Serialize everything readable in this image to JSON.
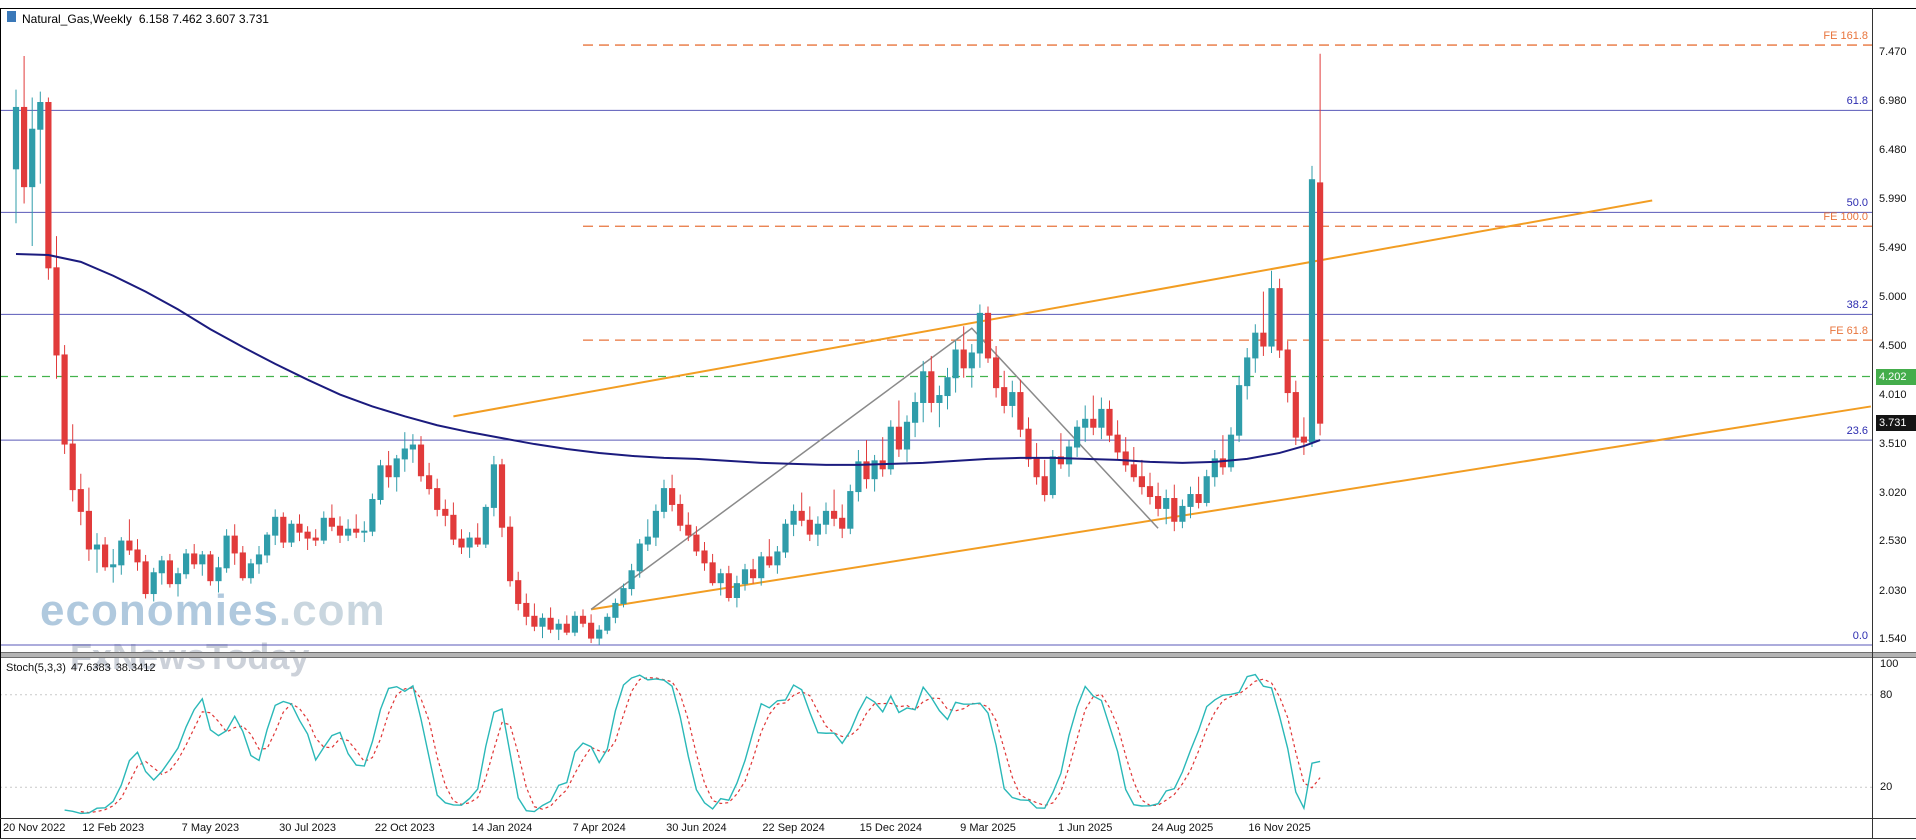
{
  "window": {
    "title_symbol": "Natural_Gas,Weekly",
    "title_ohlc": "6.158 7.462 3.607 3.731"
  },
  "watermark": {
    "brand": "economies",
    "brand_suffix": ".com",
    "subbrand": "FxNewsToday"
  },
  "indicator": {
    "label": "Stoch(5,3,3)",
    "value_k": "47.6383",
    "value_d": "38.3412",
    "scale": [
      {
        "label": "100",
        "value": 100
      },
      {
        "label": "80",
        "value": 80
      },
      {
        "label": "20",
        "value": 20
      }
    ]
  },
  "axes": {
    "price_ticks": [
      {
        "label": "7.470",
        "value": 7.47
      },
      {
        "label": "6.980",
        "value": 6.98
      },
      {
        "label": "6.480",
        "value": 6.48
      },
      {
        "label": "5.990",
        "value": 5.99
      },
      {
        "label": "5.490",
        "value": 5.49
      },
      {
        "label": "5.000",
        "value": 5.0
      },
      {
        "label": "4.500",
        "value": 4.5
      },
      {
        "label": "4.010",
        "value": 4.01
      },
      {
        "label": "3.510",
        "value": 3.51
      },
      {
        "label": "3.020",
        "value": 3.02
      },
      {
        "label": "2.530",
        "value": 2.53
      },
      {
        "label": "2.030",
        "value": 2.03
      },
      {
        "label": "1.540",
        "value": 1.54
      }
    ],
    "x_ticks": [
      {
        "week": 0,
        "label": "20 Nov 2022"
      },
      {
        "week": 12,
        "label": "12 Feb 2023"
      },
      {
        "week": 24,
        "label": "7 May 2023"
      },
      {
        "week": 36,
        "label": "30 Jul 2023"
      },
      {
        "week": 48,
        "label": "22 Oct 2023"
      },
      {
        "week": 60,
        "label": "14 Jan 2024"
      },
      {
        "week": 72,
        "label": "7 Apr 2024"
      },
      {
        "week": 84,
        "label": "30 Jun 2024"
      },
      {
        "week": 96,
        "label": "22 Sep 2024"
      },
      {
        "week": 108,
        "label": "15 Dec 2024"
      },
      {
        "week": 120,
        "label": "9 Mar 2025"
      },
      {
        "week": 132,
        "label": "1 Jun 2025"
      },
      {
        "week": 144,
        "label": "24 Aug 2025"
      },
      {
        "week": 156,
        "label": "16 Nov 2025"
      }
    ]
  },
  "colors": {
    "up": "#2f9daa",
    "down": "#e13b3b",
    "ma": "#1b1b7e",
    "fib_line": "#5a5ab8",
    "fib_label": "#2c2cb0",
    "fe": "#e8743c",
    "green_line": "#43b34d",
    "badge_green": "#44ad4b",
    "badge_dark": "#141414",
    "channel": "#f29d22",
    "pattern": "#8a8a8a",
    "stoch_k": "#2ab8b8",
    "stoch_d": "#e03636",
    "divider": "#b4b4b4",
    "divider_edge": "#6e6e6e"
  },
  "chart_data": {
    "type": "candlestick",
    "title": "Natural_Gas,Weekly",
    "symbol": "Natural_Gas",
    "timeframe": "Weekly",
    "current_bar_ohlc": [
      6.158,
      7.462,
      3.607,
      3.731
    ],
    "y_range": [
      1.42,
      7.92
    ],
    "weeks_per_tick": 12,
    "levels": {
      "fibo": [
        {
          "label": "61.8",
          "value": 6.89
        },
        {
          "label": "50.0",
          "value": 5.86
        },
        {
          "label": "38.2",
          "value": 4.83
        },
        {
          "label": "23.6",
          "value": 3.56
        },
        {
          "label": "0.0",
          "value": 1.49
        }
      ],
      "fe_start_week": 70,
      "fe": [
        {
          "label": "FE 161.8",
          "value": 7.55
        },
        {
          "label": "FE 100.0",
          "value": 5.72
        },
        {
          "label": "FE 61.8",
          "value": 4.57
        }
      ],
      "green": {
        "label": "4.202",
        "value": 4.202
      },
      "current": {
        "label": "3.731",
        "value": 3.731
      }
    },
    "trendlines": [
      {
        "name": "upper-channel",
        "from": [
          54,
          3.8
        ],
        "to": [
          202,
          5.98
        ]
      },
      {
        "name": "lower-channel",
        "from": [
          71,
          1.85
        ],
        "to": [
          229,
          3.9
        ]
      }
    ],
    "pattern": {
      "name": "zigzag-triangle",
      "points": [
        [
          71,
          1.85
        ],
        [
          118,
          4.69
        ],
        [
          141,
          2.67
        ]
      ]
    },
    "ma_points": [
      [
        0,
        5.44
      ],
      [
        4,
        5.43
      ],
      [
        8,
        5.36
      ],
      [
        12,
        5.22
      ],
      [
        16,
        5.06
      ],
      [
        20,
        4.88
      ],
      [
        24,
        4.68
      ],
      [
        28,
        4.5
      ],
      [
        32,
        4.33
      ],
      [
        36,
        4.17
      ],
      [
        40,
        4.02
      ],
      [
        44,
        3.9
      ],
      [
        48,
        3.8
      ],
      [
        52,
        3.71
      ],
      [
        56,
        3.64
      ],
      [
        60,
        3.58
      ],
      [
        64,
        3.52
      ],
      [
        68,
        3.47
      ],
      [
        72,
        3.43
      ],
      [
        76,
        3.4
      ],
      [
        80,
        3.38
      ],
      [
        84,
        3.37
      ],
      [
        88,
        3.35
      ],
      [
        92,
        3.33
      ],
      [
        96,
        3.32
      ],
      [
        100,
        3.31
      ],
      [
        104,
        3.31
      ],
      [
        108,
        3.32
      ],
      [
        112,
        3.33
      ],
      [
        116,
        3.35
      ],
      [
        120,
        3.37
      ],
      [
        124,
        3.38
      ],
      [
        128,
        3.38
      ],
      [
        132,
        3.37
      ],
      [
        136,
        3.36
      ],
      [
        140,
        3.34
      ],
      [
        144,
        3.33
      ],
      [
        148,
        3.34
      ],
      [
        152,
        3.37
      ],
      [
        156,
        3.43
      ],
      [
        159,
        3.5
      ],
      [
        161,
        3.56
      ]
    ],
    "stoch_settings": {
      "k": 5,
      "slowing": 3,
      "d": 3
    },
    "candles_ohlc": [
      [
        6.3,
        7.1,
        5.75,
        6.92
      ],
      [
        6.92,
        7.44,
        5.95,
        6.12
      ],
      [
        6.12,
        7.02,
        5.52,
        6.7
      ],
      [
        6.7,
        7.08,
        6.15,
        6.97
      ],
      [
        6.97,
        7.02,
        5.18,
        5.3
      ],
      [
        5.3,
        5.62,
        4.18,
        4.42
      ],
      [
        4.42,
        4.52,
        3.42,
        3.52
      ],
      [
        3.52,
        3.72,
        2.94,
        3.06
      ],
      [
        3.06,
        3.22,
        2.7,
        2.84
      ],
      [
        2.84,
        3.08,
        2.34,
        2.46
      ],
      [
        2.46,
        2.62,
        2.22,
        2.5
      ],
      [
        2.5,
        2.58,
        2.24,
        2.28
      ],
      [
        2.28,
        2.46,
        2.12,
        2.3
      ],
      [
        2.3,
        2.58,
        2.2,
        2.54
      ],
      [
        2.54,
        2.76,
        2.4,
        2.45
      ],
      [
        2.45,
        2.56,
        2.24,
        2.33
      ],
      [
        2.33,
        2.4,
        1.96,
        2.01
      ],
      [
        2.01,
        2.27,
        1.93,
        2.22
      ],
      [
        2.22,
        2.39,
        2.1,
        2.34
      ],
      [
        2.34,
        2.41,
        2.07,
        2.11
      ],
      [
        2.11,
        2.27,
        1.98,
        2.21
      ],
      [
        2.21,
        2.46,
        2.16,
        2.41
      ],
      [
        2.41,
        2.51,
        2.26,
        2.31
      ],
      [
        2.31,
        2.44,
        2.19,
        2.4
      ],
      [
        2.4,
        2.44,
        2.09,
        2.14
      ],
      [
        2.14,
        2.38,
        2.02,
        2.27
      ],
      [
        2.27,
        2.66,
        2.22,
        2.59
      ],
      [
        2.59,
        2.71,
        2.3,
        2.42
      ],
      [
        2.42,
        2.49,
        2.14,
        2.17
      ],
      [
        2.17,
        2.36,
        2.11,
        2.31
      ],
      [
        2.31,
        2.49,
        2.21,
        2.4
      ],
      [
        2.4,
        2.63,
        2.32,
        2.6
      ],
      [
        2.6,
        2.86,
        2.5,
        2.78
      ],
      [
        2.78,
        2.83,
        2.47,
        2.53
      ],
      [
        2.53,
        2.75,
        2.48,
        2.71
      ],
      [
        2.71,
        2.81,
        2.54,
        2.63
      ],
      [
        2.63,
        2.69,
        2.45,
        2.57
      ],
      [
        2.57,
        2.66,
        2.49,
        2.55
      ],
      [
        2.55,
        2.84,
        2.51,
        2.77
      ],
      [
        2.77,
        2.91,
        2.64,
        2.69
      ],
      [
        2.69,
        2.79,
        2.52,
        2.6
      ],
      [
        2.6,
        2.76,
        2.54,
        2.66
      ],
      [
        2.66,
        2.81,
        2.57,
        2.63
      ],
      [
        2.63,
        2.74,
        2.53,
        2.64
      ],
      [
        2.64,
        3.02,
        2.59,
        2.96
      ],
      [
        2.96,
        3.36,
        2.91,
        3.3
      ],
      [
        3.3,
        3.45,
        3.08,
        3.19
      ],
      [
        3.19,
        3.41,
        3.04,
        3.37
      ],
      [
        3.37,
        3.64,
        3.24,
        3.47
      ],
      [
        3.47,
        3.62,
        3.33,
        3.51
      ],
      [
        3.51,
        3.6,
        3.14,
        3.2
      ],
      [
        3.2,
        3.33,
        3.01,
        3.07
      ],
      [
        3.07,
        3.17,
        2.79,
        2.86
      ],
      [
        2.86,
        2.96,
        2.69,
        2.8
      ],
      [
        2.8,
        2.93,
        2.5,
        2.56
      ],
      [
        2.56,
        2.66,
        2.41,
        2.48
      ],
      [
        2.48,
        2.63,
        2.37,
        2.57
      ],
      [
        2.57,
        2.72,
        2.48,
        2.51
      ],
      [
        2.51,
        2.91,
        2.47,
        2.88
      ],
      [
        2.88,
        3.4,
        2.79,
        3.31
      ],
      [
        3.31,
        3.37,
        2.58,
        2.68
      ],
      [
        2.68,
        2.79,
        2.08,
        2.14
      ],
      [
        2.14,
        2.23,
        1.84,
        1.91
      ],
      [
        1.91,
        2.01,
        1.69,
        1.78
      ],
      [
        1.78,
        1.91,
        1.63,
        1.68
      ],
      [
        1.68,
        1.81,
        1.56,
        1.76
      ],
      [
        1.76,
        1.87,
        1.61,
        1.65
      ],
      [
        1.65,
        1.75,
        1.54,
        1.7
      ],
      [
        1.7,
        1.79,
        1.59,
        1.62
      ],
      [
        1.62,
        1.83,
        1.58,
        1.78
      ],
      [
        1.78,
        1.85,
        1.67,
        1.71
      ],
      [
        1.71,
        1.8,
        1.51,
        1.56
      ],
      [
        1.56,
        1.69,
        1.49,
        1.64
      ],
      [
        1.64,
        1.81,
        1.6,
        1.77
      ],
      [
        1.77,
        1.96,
        1.71,
        1.91
      ],
      [
        1.91,
        2.11,
        1.87,
        2.06
      ],
      [
        2.06,
        2.31,
        1.99,
        2.24
      ],
      [
        2.24,
        2.56,
        2.17,
        2.51
      ],
      [
        2.51,
        2.76,
        2.44,
        2.58
      ],
      [
        2.58,
        2.91,
        2.49,
        2.84
      ],
      [
        2.84,
        3.16,
        2.77,
        3.07
      ],
      [
        3.07,
        3.21,
        2.84,
        2.91
      ],
      [
        2.91,
        3.01,
        2.64,
        2.7
      ],
      [
        2.7,
        2.83,
        2.54,
        2.6
      ],
      [
        2.6,
        2.69,
        2.39,
        2.44
      ],
      [
        2.44,
        2.53,
        2.24,
        2.32
      ],
      [
        2.32,
        2.41,
        2.09,
        2.12
      ],
      [
        2.12,
        2.26,
        1.99,
        2.21
      ],
      [
        2.21,
        2.29,
        1.93,
        1.97
      ],
      [
        1.97,
        2.19,
        1.87,
        2.11
      ],
      [
        2.11,
        2.31,
        2.04,
        2.25
      ],
      [
        2.25,
        2.36,
        2.11,
        2.17
      ],
      [
        2.17,
        2.43,
        2.09,
        2.38
      ],
      [
        2.38,
        2.56,
        2.27,
        2.3
      ],
      [
        2.3,
        2.49,
        2.21,
        2.43
      ],
      [
        2.43,
        2.76,
        2.37,
        2.71
      ],
      [
        2.71,
        2.91,
        2.59,
        2.84
      ],
      [
        2.84,
        3.03,
        2.69,
        2.75
      ],
      [
        2.75,
        2.89,
        2.54,
        2.61
      ],
      [
        2.61,
        2.79,
        2.49,
        2.71
      ],
      [
        2.71,
        2.93,
        2.61,
        2.84
      ],
      [
        2.84,
        3.06,
        2.69,
        2.77
      ],
      [
        2.77,
        2.91,
        2.57,
        2.67
      ],
      [
        2.67,
        3.11,
        2.61,
        3.04
      ],
      [
        3.04,
        3.46,
        2.94,
        3.34
      ],
      [
        3.34,
        3.56,
        3.07,
        3.17
      ],
      [
        3.17,
        3.41,
        3.04,
        3.35
      ],
      [
        3.35,
        3.59,
        3.19,
        3.27
      ],
      [
        3.27,
        3.76,
        3.21,
        3.69
      ],
      [
        3.69,
        3.96,
        3.39,
        3.47
      ],
      [
        3.47,
        3.81,
        3.34,
        3.74
      ],
      [
        3.74,
        4.04,
        3.59,
        3.94
      ],
      [
        3.94,
        4.36,
        3.74,
        4.25
      ],
      [
        4.25,
        4.41,
        3.84,
        3.94
      ],
      [
        3.94,
        4.11,
        3.69,
        4.01
      ],
      [
        4.01,
        4.29,
        3.87,
        4.19
      ],
      [
        4.19,
        4.56,
        4.04,
        4.47
      ],
      [
        4.47,
        4.71,
        4.19,
        4.29
      ],
      [
        4.29,
        4.53,
        4.09,
        4.44
      ],
      [
        4.44,
        4.93,
        4.29,
        4.84
      ],
      [
        4.84,
        4.91,
        4.34,
        4.39
      ],
      [
        4.39,
        4.51,
        3.99,
        4.09
      ],
      [
        4.09,
        4.26,
        3.83,
        3.91
      ],
      [
        3.91,
        4.16,
        3.79,
        4.04
      ],
      [
        4.04,
        4.17,
        3.59,
        3.67
      ],
      [
        3.67,
        3.79,
        3.29,
        3.37
      ],
      [
        3.37,
        3.53,
        3.11,
        3.19
      ],
      [
        3.19,
        3.36,
        2.94,
        3.01
      ],
      [
        3.01,
        3.46,
        2.97,
        3.39
      ],
      [
        3.39,
        3.63,
        3.27,
        3.32
      ],
      [
        3.32,
        3.56,
        3.19,
        3.49
      ],
      [
        3.49,
        3.76,
        3.39,
        3.69
      ],
      [
        3.69,
        3.91,
        3.54,
        3.77
      ],
      [
        3.77,
        4.01,
        3.61,
        3.69
      ],
      [
        3.69,
        3.99,
        3.57,
        3.87
      ],
      [
        3.87,
        3.96,
        3.54,
        3.61
      ],
      [
        3.61,
        3.76,
        3.37,
        3.44
      ],
      [
        3.44,
        3.59,
        3.24,
        3.31
      ],
      [
        3.31,
        3.49,
        3.14,
        3.19
      ],
      [
        3.19,
        3.36,
        3.01,
        3.09
      ],
      [
        3.09,
        3.23,
        2.91,
        2.99
      ],
      [
        2.99,
        3.13,
        2.79,
        2.87
      ],
      [
        2.87,
        3.06,
        2.71,
        2.97
      ],
      [
        2.97,
        3.11,
        2.64,
        2.74
      ],
      [
        2.74,
        2.96,
        2.67,
        2.89
      ],
      [
        2.89,
        3.09,
        2.77,
        3.01
      ],
      [
        3.01,
        3.19,
        2.87,
        2.93
      ],
      [
        2.93,
        3.26,
        2.89,
        3.19
      ],
      [
        3.19,
        3.46,
        3.09,
        3.37
      ],
      [
        3.37,
        3.61,
        3.21,
        3.29
      ],
      [
        3.29,
        3.69,
        3.24,
        3.61
      ],
      [
        3.61,
        4.21,
        3.54,
        4.11
      ],
      [
        4.11,
        4.49,
        3.97,
        4.39
      ],
      [
        4.39,
        4.73,
        4.24,
        4.64
      ],
      [
        4.64,
        5.06,
        4.41,
        4.51
      ],
      [
        4.51,
        5.27,
        4.44,
        5.09
      ],
      [
        5.09,
        5.19,
        4.39,
        4.47
      ],
      [
        4.47,
        4.56,
        3.94,
        4.04
      ],
      [
        4.04,
        4.16,
        3.51,
        3.59
      ],
      [
        3.59,
        3.79,
        3.41,
        3.54
      ],
      [
        3.54,
        6.33,
        3.49,
        6.19
      ],
      [
        6.158,
        7.462,
        3.607,
        3.731
      ]
    ]
  }
}
